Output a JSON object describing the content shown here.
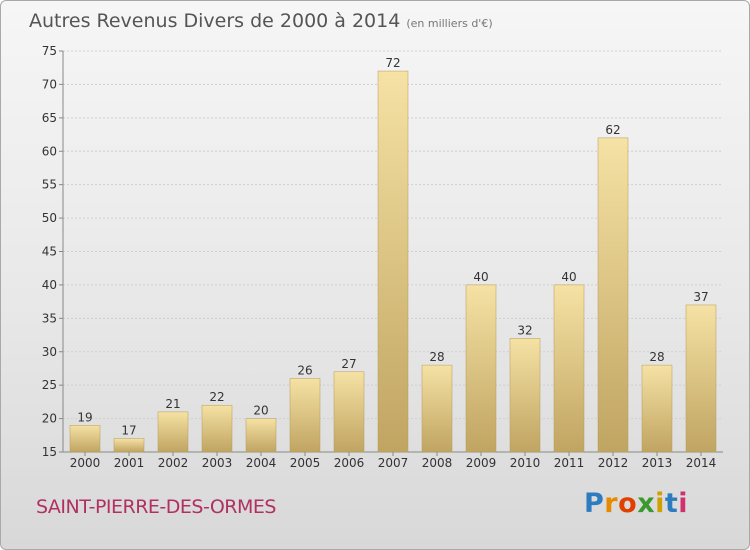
{
  "header": {
    "title": "Autres Revenus Divers de 2000 à 2014",
    "unit_note": "(en milliers d'€)"
  },
  "footer": {
    "town": "SAINT-PIERRE-DES-ORMES",
    "brand": {
      "p": "P",
      "r": "r",
      "o": "o",
      "x": "x",
      "i": "i",
      "t": "t",
      "i2": "i"
    }
  },
  "colors": {
    "bar_light": "#f3dfa0",
    "bar_dark": "#c2a664",
    "grid": "#cfcfcf",
    "axis_text": "#333333",
    "town": "#b03060"
  },
  "chart_data": {
    "type": "bar",
    "title": "Autres Revenus Divers de 2000 à 2014",
    "subtitle": "(en milliers d'€)",
    "xlabel": "",
    "ylabel": "",
    "categories": [
      "2000",
      "2001",
      "2002",
      "2003",
      "2004",
      "2005",
      "2006",
      "2007",
      "2008",
      "2009",
      "2010",
      "2011",
      "2012",
      "2013",
      "2014"
    ],
    "values": [
      19,
      17,
      21,
      22,
      20,
      26,
      27,
      72,
      28,
      40,
      32,
      40,
      62,
      28,
      37
    ],
    "ylim": [
      15,
      75
    ],
    "yticks": [
      15,
      20,
      25,
      30,
      35,
      40,
      45,
      50,
      55,
      60,
      65,
      70,
      75
    ],
    "grid": true,
    "legend": "none"
  }
}
